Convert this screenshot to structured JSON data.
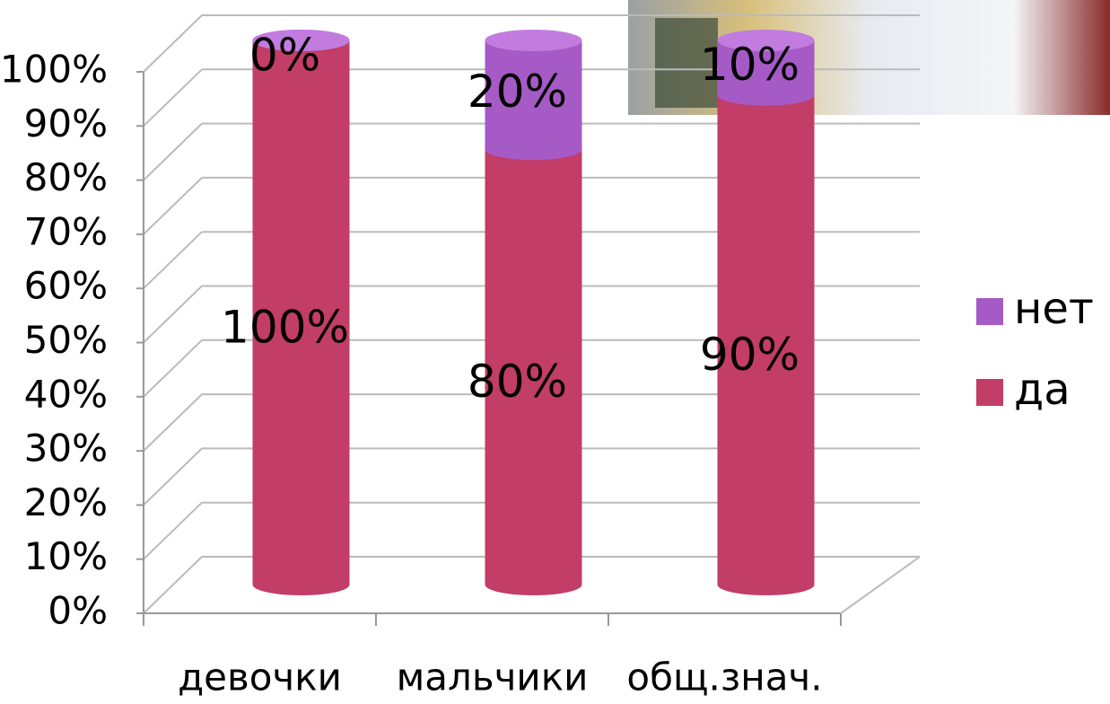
{
  "chart_data": {
    "type": "bar",
    "stacked": true,
    "categories": [
      "девочки",
      "мальчики",
      "общ.знач."
    ],
    "series": [
      {
        "name": "да",
        "color": "#c23d67",
        "values": [
          100,
          80,
          90
        ],
        "value_labels": [
          "100%",
          "80%",
          "90%"
        ]
      },
      {
        "name": "нет",
        "color": "#a65ac6",
        "values": [
          0,
          20,
          10
        ],
        "value_labels": [
          "0%",
          "20%",
          "10%"
        ]
      }
    ],
    "ylim": [
      0,
      100
    ],
    "yticks": [
      {
        "value": 0,
        "label": "0%"
      },
      {
        "value": 10,
        "label": "10%"
      },
      {
        "value": 20,
        "label": "20%"
      },
      {
        "value": 30,
        "label": "30%"
      },
      {
        "value": 40,
        "label": "40%"
      },
      {
        "value": 50,
        "label": "50%"
      },
      {
        "value": 60,
        "label": "60%"
      },
      {
        "value": 70,
        "label": "70%"
      },
      {
        "value": 80,
        "label": "80%"
      },
      {
        "value": 90,
        "label": "90%"
      },
      {
        "value": 100,
        "label": "100%"
      }
    ],
    "grid": true,
    "legend": "right"
  }
}
